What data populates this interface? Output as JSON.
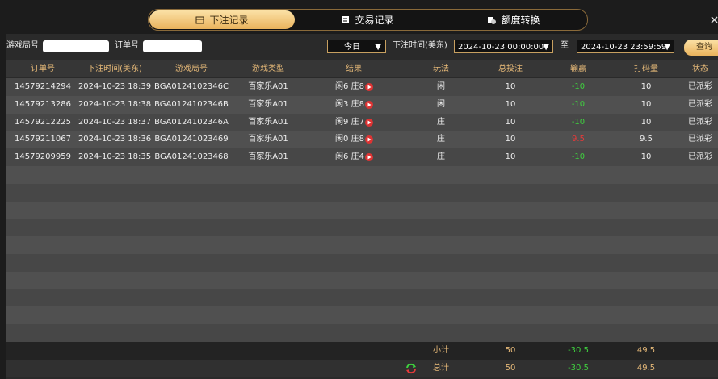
{
  "tabs": [
    "下注记录",
    "交易记录",
    "额度转换"
  ],
  "filters": {
    "round_label": "游戏局号",
    "order_label": "订单号",
    "period": "今日",
    "time_label": "下注时间(美东)",
    "start": "2024-10-23 00:00:00",
    "to": "至",
    "end": "2024-10-23 23:59:59",
    "search": "查询"
  },
  "table": {
    "headers": [
      "订单号",
      "下注时间(美东)",
      "游戏局号",
      "游戏类型",
      "结果",
      "玩法",
      "总投注",
      "输赢",
      "打码量",
      "状态"
    ],
    "rows": [
      [
        "14579214294",
        "2024-10-23 18:39",
        "BGA0124102346C",
        "百家乐A01",
        "闲6 庄8",
        "闲",
        "10",
        "-10",
        "10",
        "已派彩"
      ],
      [
        "14579213286",
        "2024-10-23 18:38",
        "BGA0124102346B",
        "百家乐A01",
        "闲3 庄8",
        "闲",
        "10",
        "-10",
        "10",
        "已派彩"
      ],
      [
        "14579212225",
        "2024-10-23 18:37",
        "BGA0124102346A",
        "百家乐A01",
        "闲9 庄7",
        "庄",
        "10",
        "-10",
        "10",
        "已派彩"
      ],
      [
        "14579211067",
        "2024-10-23 18:36",
        "BGA01241023469",
        "百家乐A01",
        "闲0 庄8",
        "庄",
        "10",
        "9.5",
        "9.5",
        "已派彩"
      ],
      [
        "14579209959",
        "2024-10-23 18:35",
        "BGA01241023468",
        "百家乐A01",
        "闲6 庄4",
        "庄",
        "10",
        "-10",
        "10",
        "已派彩"
      ]
    ],
    "subtotal": {
      "label": "小计",
      "bet": "50",
      "win": "-30.5",
      "turnover": "49.5"
    },
    "total": {
      "label": "总计",
      "bet": "50",
      "win": "-30.5",
      "turnover": "49.5"
    }
  }
}
